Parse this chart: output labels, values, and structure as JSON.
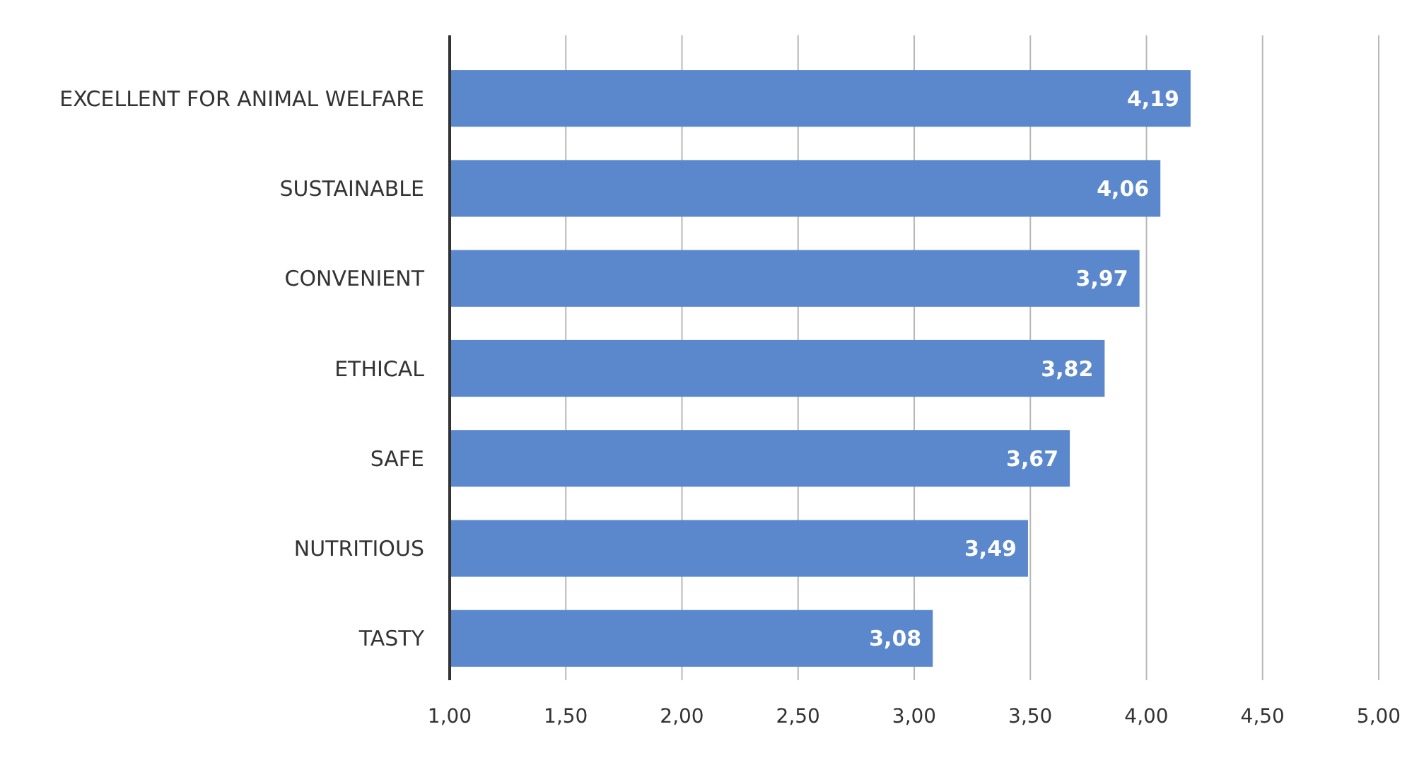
{
  "chart_data": {
    "type": "bar",
    "orientation": "horizontal",
    "categories": [
      "EXCELLENT FOR ANIMAL WELFARE",
      "SUSTAINABLE",
      "CONVENIENT",
      "ETHICAL",
      "SAFE",
      "NUTRITIOUS",
      "TASTY"
    ],
    "values": [
      4.19,
      4.06,
      3.97,
      3.82,
      3.67,
      3.49,
      3.08
    ],
    "value_labels": [
      "4,19",
      "4,06",
      "3,97",
      "3,82",
      "3,67",
      "3,49",
      "3,08"
    ],
    "color": "#5b87cd",
    "xlim": [
      1,
      5
    ],
    "xticks": [
      {
        "value": 1,
        "label": "1,00"
      },
      {
        "value": 1.5,
        "label": "1,50"
      },
      {
        "value": 2,
        "label": "2,00"
      },
      {
        "value": 2.5,
        "label": "2,50"
      },
      {
        "value": 3,
        "label": "3,00"
      },
      {
        "value": 3.5,
        "label": "3,50"
      },
      {
        "value": 4,
        "label": "4,00"
      },
      {
        "value": 4.5,
        "label": "4,50"
      },
      {
        "value": 5,
        "label": "5,00"
      }
    ],
    "grid": "x"
  }
}
